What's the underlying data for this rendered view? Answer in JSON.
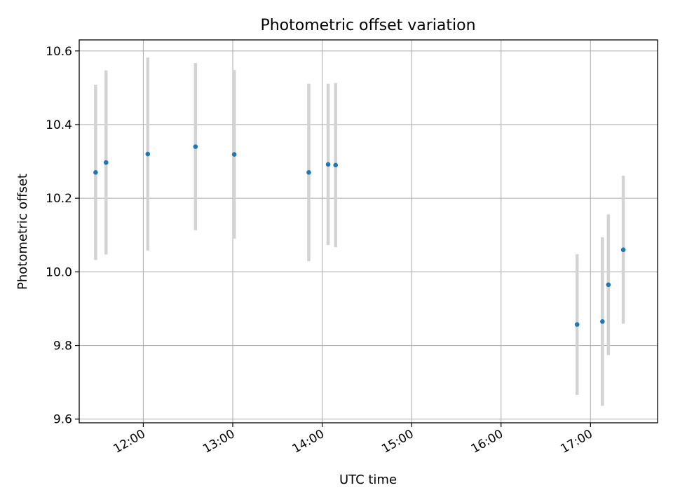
{
  "chart_data": {
    "type": "scatter",
    "title": "Photometric offset variation",
    "xlabel": "UTC time",
    "ylabel": "Photometric offset",
    "xlim": [
      "11:17",
      "17:45"
    ],
    "ylim": [
      9.59,
      10.63
    ],
    "grid": true,
    "colors": {
      "point": "#1f77b4",
      "errorbar": "#d3d3d3",
      "grid": "#b0b0b0"
    },
    "x_ticks": [
      "12:00",
      "13:00",
      "14:00",
      "15:00",
      "16:00",
      "17:00"
    ],
    "y_ticks": [
      "9.6",
      "9.8",
      "10.0",
      "10.2",
      "10.4",
      "10.6"
    ],
    "series": [
      {
        "x": [
          "11:28",
          "11:35",
          "12:03",
          "12:35",
          "13:01",
          "13:51",
          "14:04",
          "14:09",
          "16:51",
          "17:08",
          "17:12",
          "17:22"
        ],
        "y": [
          10.27,
          10.297,
          10.32,
          10.34,
          10.319,
          10.27,
          10.292,
          10.29,
          9.857,
          9.865,
          9.965,
          10.06
        ],
        "yerr": [
          0.238,
          0.25,
          0.262,
          0.227,
          0.229,
          0.241,
          0.219,
          0.223,
          0.191,
          0.229,
          0.191,
          0.201
        ]
      }
    ]
  }
}
